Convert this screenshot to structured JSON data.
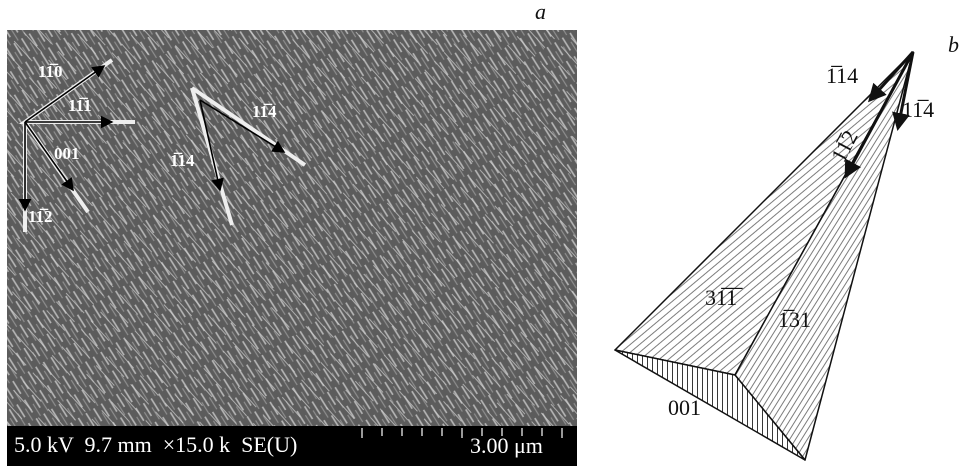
{
  "panel_a": {
    "label": "a",
    "directions": [
      "11̅0",
      "11̅1",
      "001",
      "11̅2",
      "1̅14",
      "11̅4"
    ],
    "scale_bar": {
      "info": "5.0 kV  9.7 mm  ×15.0 k  SE(U)",
      "length": "3.00 μm"
    }
  },
  "panel_b": {
    "label": "b",
    "directions": [
      "1̅14",
      "11̅4",
      "11̅2"
    ],
    "faces": [
      "31̅1̅",
      "1̅31",
      "001"
    ]
  }
}
